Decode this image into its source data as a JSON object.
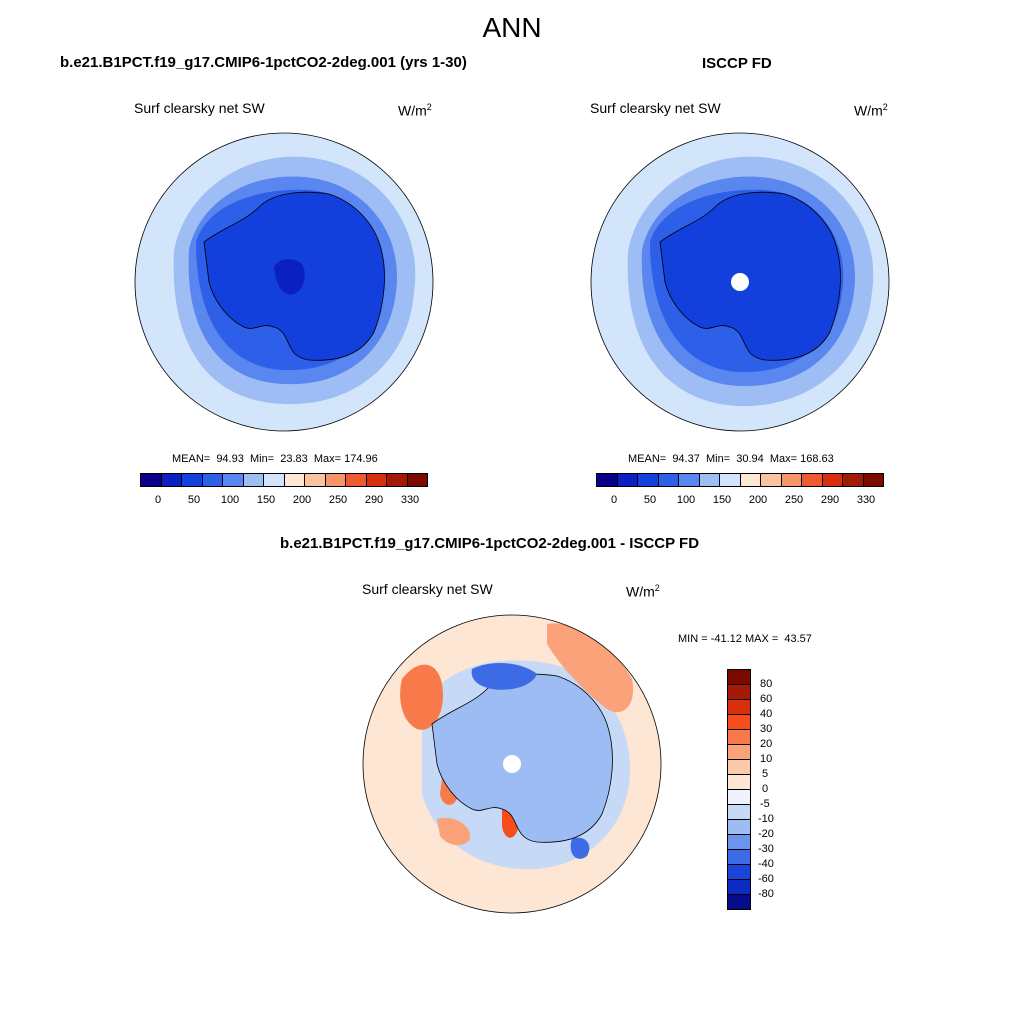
{
  "figure_title": "ANN",
  "panels": [
    {
      "title": "b.e21.B1PCT.f19_g17.CMIP6-1pctCO2-2deg.001 (yrs 1-30)",
      "variable": "Surf clearsky net SW",
      "units_base": "W/m",
      "units_exp": "2",
      "stats_text": "MEAN=  94.93  Min=  23.83  Max= 174.96",
      "colorbar_labels": [
        "0",
        "50",
        "100",
        "150",
        "200",
        "250",
        "290",
        "330"
      ]
    },
    {
      "title": "ISCCP FD",
      "variable": "Surf clearsky net SW",
      "units_base": "W/m",
      "units_exp": "2",
      "stats_text": "MEAN=  94.37  Min=  30.94  Max= 168.63",
      "colorbar_labels": [
        "0",
        "50",
        "100",
        "150",
        "200",
        "250",
        "290",
        "330"
      ]
    }
  ],
  "diff_panel": {
    "title": "b.e21.B1PCT.f19_g17.CMIP6-1pctCO2-2deg.001 - ISCCP FD",
    "variable": "Surf clearsky net SW",
    "units_base": "W/m",
    "units_exp": "2",
    "stats_text": "MIN = -41.12 MAX =  43.57",
    "colorbar_labels": [
      "80",
      "60",
      "40",
      "30",
      "20",
      "10",
      "5",
      "0",
      "-5",
      "-10",
      "-20",
      "-30",
      "-40",
      "-60",
      "-80"
    ]
  },
  "colors": {
    "abs_scale": [
      "#08008a",
      "#0a20c0",
      "#1340dd",
      "#2e5fe8",
      "#5a86ef",
      "#9fbdf5",
      "#d3e5fb",
      "#fde6d3",
      "#fbc2a0",
      "#f79468",
      "#ee5a31",
      "#d8300f",
      "#a51a07",
      "#7a0a00"
    ],
    "diff_scale": [
      "#7a0a00",
      "#a51a07",
      "#d8300f",
      "#f74c1c",
      "#f87a4a",
      "#fba27a",
      "#fccaa8",
      "#fde6d3",
      "#eef3fb",
      "#c6d9f7",
      "#9dbcf3",
      "#6b95ec",
      "#3d6be6",
      "#1a45dc",
      "#0b2bc2",
      "#050d8e"
    ],
    "land_mask": "#ffffff"
  }
}
